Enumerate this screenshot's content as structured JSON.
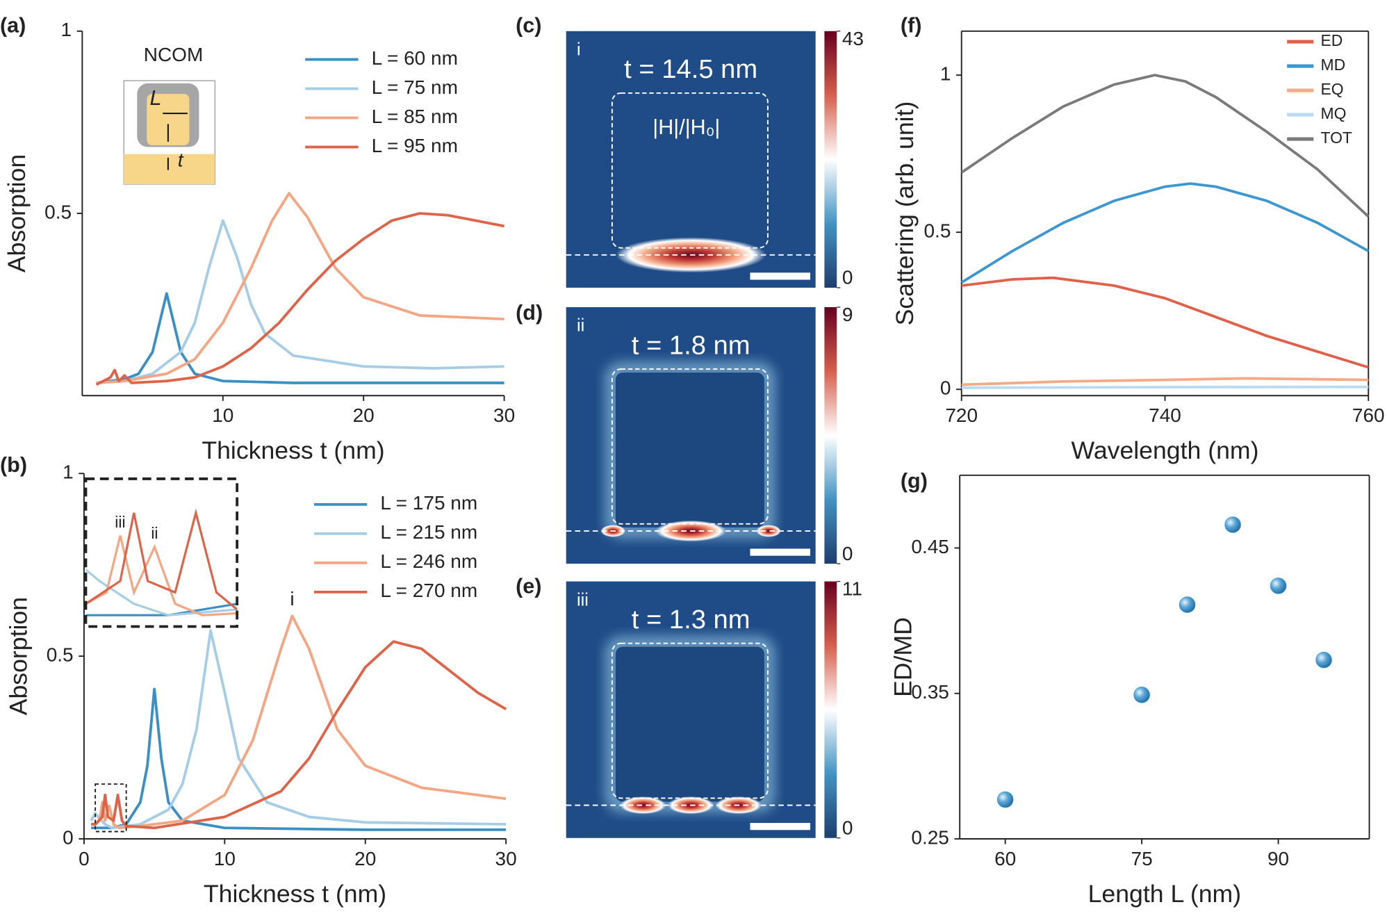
{
  "chart_data": [
    {
      "type": "line",
      "panel": "(a)",
      "xlabel": "Thickness t (nm)",
      "ylabel": "Absorption",
      "xlim": [
        0,
        30
      ],
      "ylim": [
        0,
        1
      ],
      "xticks": [
        10,
        20,
        30
      ],
      "yticks": [
        0.5,
        1
      ],
      "legend_position": "upper right",
      "schematic": {
        "title": "NCOM",
        "labels": [
          "L",
          "t"
        ]
      },
      "series": [
        {
          "name": "L = 60 nm",
          "color": "#3a8fc4",
          "x": [
            1,
            2,
            3,
            4,
            5,
            5.5,
            6,
            6.5,
            7,
            8,
            10,
            15,
            20,
            30
          ],
          "values": [
            0.035,
            0.04,
            0.045,
            0.06,
            0.12,
            0.2,
            0.28,
            0.2,
            0.12,
            0.06,
            0.04,
            0.035,
            0.035,
            0.035
          ]
        },
        {
          "name": "L = 75 nm",
          "color": "#a6cde6",
          "x": [
            1,
            3,
            5,
            7,
            8,
            9,
            10,
            11,
            12,
            13,
            15,
            20,
            25,
            30
          ],
          "values": [
            0.035,
            0.04,
            0.06,
            0.12,
            0.2,
            0.35,
            0.48,
            0.38,
            0.25,
            0.17,
            0.11,
            0.08,
            0.075,
            0.08
          ]
        },
        {
          "name": "L = 85 nm",
          "color": "#f4a582",
          "x": [
            1,
            3,
            6,
            8,
            10,
            12,
            13.5,
            14.7,
            16,
            18,
            20,
            24,
            30
          ],
          "values": [
            0.035,
            0.04,
            0.06,
            0.1,
            0.2,
            0.35,
            0.48,
            0.555,
            0.49,
            0.35,
            0.27,
            0.22,
            0.21
          ]
        },
        {
          "name": "L = 95 nm",
          "color": "#dd6449",
          "x": [
            1,
            2,
            2.3,
            2.6,
            3,
            3.5,
            6,
            8,
            10,
            12,
            14,
            16,
            18,
            20,
            22,
            24,
            26,
            28,
            30
          ],
          "values": [
            0.03,
            0.05,
            0.07,
            0.04,
            0.055,
            0.035,
            0.04,
            0.05,
            0.08,
            0.13,
            0.2,
            0.29,
            0.37,
            0.43,
            0.48,
            0.5,
            0.495,
            0.48,
            0.465
          ]
        }
      ]
    },
    {
      "type": "line",
      "panel": "(b)",
      "xlabel": "Thickness t (nm)",
      "ylabel": "Absorption",
      "xlim": [
        0,
        30
      ],
      "ylim": [
        0,
        1
      ],
      "xticks": [
        0,
        10,
        20,
        30
      ],
      "yticks": [
        0,
        0.5,
        1
      ],
      "legend_position": "upper right",
      "annotations": [
        {
          "text": "i",
          "x": 14.8,
          "y": 0.61
        }
      ],
      "inset": {
        "xlim": [
          0.8,
          3
        ],
        "ylim": [
          0.02,
          0.15
        ],
        "annotations": [
          {
            "text": "iii",
            "x": 1.3,
            "y": 0.1
          },
          {
            "text": "ii",
            "x": 1.8,
            "y": 0.09
          }
        ]
      },
      "series": [
        {
          "name": "L = 175 nm",
          "color": "#3a8fc4",
          "x": [
            0.5,
            2,
            3,
            4,
            4.5,
            5,
            5.5,
            6,
            7,
            10,
            20,
            30
          ],
          "values": [
            0.03,
            0.03,
            0.04,
            0.1,
            0.2,
            0.41,
            0.22,
            0.1,
            0.05,
            0.03,
            0.025,
            0.025
          ]
        },
        {
          "name": "L = 215 nm",
          "color": "#a6cde6",
          "x": [
            0.5,
            0.8,
            1,
            1.5,
            2,
            4,
            6,
            7,
            8,
            9,
            10,
            11,
            13,
            16,
            20,
            30
          ],
          "values": [
            0.05,
            0.07,
            0.06,
            0.04,
            0.03,
            0.04,
            0.08,
            0.15,
            0.3,
            0.57,
            0.4,
            0.22,
            0.1,
            0.06,
            0.045,
            0.04
          ]
        },
        {
          "name": "L = 246 nm",
          "color": "#f4a582",
          "x": [
            0.5,
            0.8,
            1.1,
            1.3,
            1.5,
            1.8,
            2.1,
            2.5,
            4,
            7,
            10,
            12,
            14,
            14.8,
            16,
            18,
            20,
            24,
            30
          ],
          "values": [
            0.04,
            0.04,
            0.05,
            0.1,
            0.05,
            0.09,
            0.04,
            0.03,
            0.035,
            0.05,
            0.12,
            0.27,
            0.52,
            0.61,
            0.52,
            0.3,
            0.2,
            0.14,
            0.11
          ]
        },
        {
          "name": "L = 270 nm",
          "color": "#dd6449",
          "x": [
            0.5,
            0.8,
            1.3,
            1.5,
            1.7,
            2.1,
            2.4,
            2.7,
            3,
            5,
            10,
            14,
            16,
            18,
            20,
            22,
            24,
            26,
            28,
            30
          ],
          "values": [
            0.04,
            0.04,
            0.06,
            0.12,
            0.06,
            0.05,
            0.12,
            0.05,
            0.035,
            0.03,
            0.06,
            0.13,
            0.22,
            0.35,
            0.47,
            0.54,
            0.52,
            0.46,
            0.4,
            0.355
          ]
        }
      ]
    },
    {
      "type": "heatmap",
      "panel": "(c)",
      "label": "i",
      "annotation": "t = 14.5 nm",
      "quantity": "|H|/|H₀|",
      "clim": [
        0,
        43
      ],
      "cticks": [
        0,
        43
      ]
    },
    {
      "type": "heatmap",
      "panel": "(d)",
      "label": "ii",
      "annotation": "t = 1.8 nm",
      "clim": [
        0,
        9
      ],
      "cticks": [
        0,
        9
      ]
    },
    {
      "type": "heatmap",
      "panel": "(e)",
      "label": "iii",
      "annotation": "t = 1.3 nm",
      "clim": [
        0,
        11
      ],
      "cticks": [
        0,
        11
      ]
    },
    {
      "type": "line",
      "panel": "(f)",
      "xlabel": "Wavelength (nm)",
      "ylabel": "Scattering (arb. unit)",
      "xlim": [
        720,
        760
      ],
      "ylim": [
        -0.02,
        1.14
      ],
      "xticks": [
        720,
        740,
        760
      ],
      "yticks": [
        0,
        0.5,
        1
      ],
      "legend_position": "upper right",
      "series": [
        {
          "name": "ED",
          "color": "#e0604a",
          "x": [
            720,
            725,
            729,
            735,
            740,
            745,
            750,
            755,
            760
          ],
          "values": [
            0.33,
            0.35,
            0.355,
            0.33,
            0.29,
            0.23,
            0.17,
            0.12,
            0.07
          ]
        },
        {
          "name": "MD",
          "color": "#3d97cf",
          "x": [
            720,
            725,
            730,
            735,
            740,
            742.5,
            745,
            750,
            755,
            760
          ],
          "values": [
            0.34,
            0.44,
            0.53,
            0.6,
            0.645,
            0.655,
            0.645,
            0.6,
            0.53,
            0.44
          ]
        },
        {
          "name": "EQ",
          "color": "#f4aa86",
          "x": [
            720,
            730,
            740,
            748,
            760
          ],
          "values": [
            0.015,
            0.025,
            0.03,
            0.035,
            0.03
          ]
        },
        {
          "name": "MQ",
          "color": "#b9daf0",
          "x": [
            720,
            740,
            760
          ],
          "values": [
            0.005,
            0.007,
            0.008
          ]
        },
        {
          "name": "TOT",
          "color": "#7a7a7a",
          "x": [
            720,
            725,
            730,
            735,
            739,
            742,
            745,
            750,
            755,
            760
          ],
          "values": [
            0.69,
            0.8,
            0.9,
            0.97,
            1.0,
            0.98,
            0.93,
            0.82,
            0.7,
            0.55
          ]
        }
      ]
    },
    {
      "type": "scatter",
      "panel": "(g)",
      "xlabel": "Length L (nm)",
      "ylabel": "ED/MD",
      "xlim": [
        55,
        100
      ],
      "ylim": [
        0.25,
        0.5
      ],
      "xticks": [
        60,
        75,
        90
      ],
      "yticks": [
        0.25,
        0.35,
        0.45
      ],
      "color": "#3d97cf",
      "x": [
        60,
        75,
        80,
        85,
        90,
        95
      ],
      "values": [
        0.277,
        0.349,
        0.411,
        0.466,
        0.424,
        0.373
      ]
    }
  ]
}
